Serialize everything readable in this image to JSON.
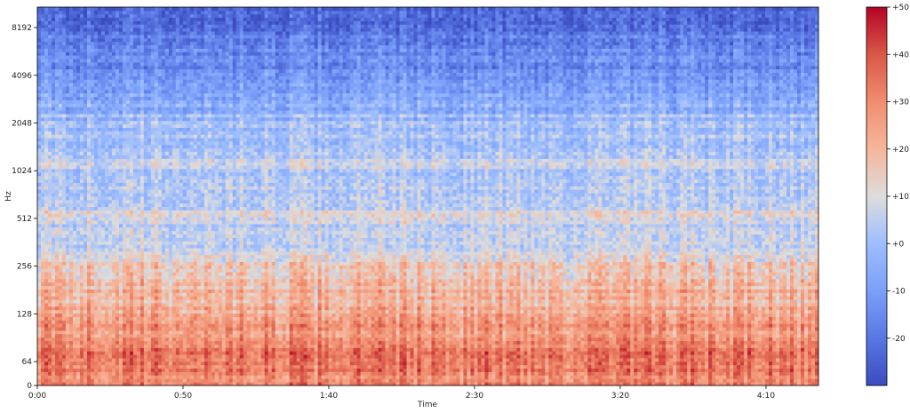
{
  "chart_data": {
    "type": "heatmap",
    "title": "",
    "xlabel": "Time",
    "ylabel": "Hz",
    "x_ticks": [
      {
        "value": 0,
        "label": "0:00"
      },
      {
        "value": 50,
        "label": "0:50"
      },
      {
        "value": 100,
        "label": "1:40"
      },
      {
        "value": 150,
        "label": "2:30"
      },
      {
        "value": 200,
        "label": "3:20"
      },
      {
        "value": 250,
        "label": "4:10"
      }
    ],
    "xlim": [
      0,
      268
    ],
    "y_scale": "log",
    "y_ticks": [
      {
        "value": 0,
        "label": "0"
      },
      {
        "value": 64,
        "label": "64"
      },
      {
        "value": 128,
        "label": "128"
      },
      {
        "value": 256,
        "label": "256"
      },
      {
        "value": 512,
        "label": "512"
      },
      {
        "value": 1024,
        "label": "1024"
      },
      {
        "value": 2048,
        "label": "2048"
      },
      {
        "value": 4096,
        "label": "4096"
      },
      {
        "value": 8192,
        "label": "8192"
      }
    ],
    "ylim": [
      0,
      11025
    ],
    "band_levels_db": [
      {
        "hz": 32,
        "db": 32
      },
      {
        "hz": 64,
        "db": 36
      },
      {
        "hz": 100,
        "db": 28
      },
      {
        "hz": 180,
        "db": 20
      },
      {
        "hz": 256,
        "db": 15
      },
      {
        "hz": 400,
        "db": 4
      },
      {
        "hz": 512,
        "db": 9
      },
      {
        "hz": 800,
        "db": 2
      },
      {
        "hz": 1024,
        "db": 5
      },
      {
        "hz": 2048,
        "db": 0
      },
      {
        "hz": 4096,
        "db": -12
      },
      {
        "hz": 8192,
        "db": -20
      }
    ],
    "colorbar": {
      "colormap": "coolwarm",
      "range": [
        -30,
        50
      ],
      "ticks": [
        {
          "value": 50,
          "label": "+50"
        },
        {
          "value": 40,
          "label": "+40"
        },
        {
          "value": 30,
          "label": "+30"
        },
        {
          "value": 20,
          "label": "+20"
        },
        {
          "value": 10,
          "label": "+10"
        },
        {
          "value": 0,
          "label": "+0"
        },
        {
          "value": -10,
          "label": "-10"
        },
        {
          "value": -20,
          "label": "-20"
        }
      ]
    },
    "colors": {
      "low": "#3b4cc0",
      "mid": "#dddddd",
      "high": "#b40426"
    }
  }
}
